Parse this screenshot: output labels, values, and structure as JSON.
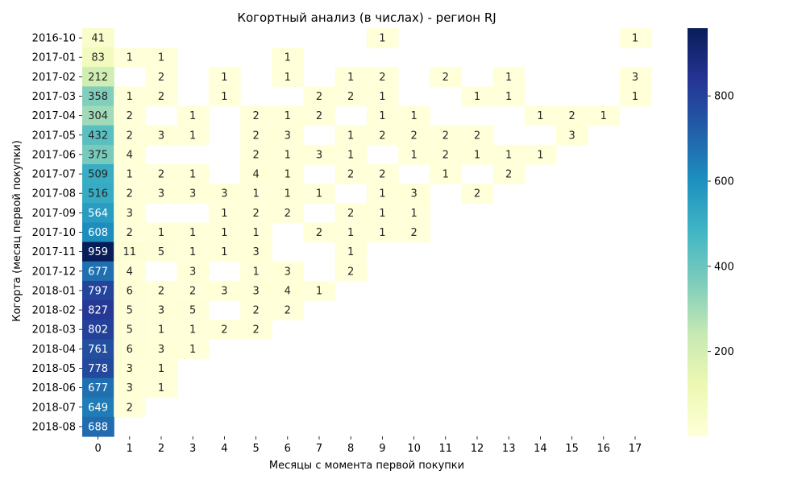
{
  "chart_data": {
    "type": "heatmap",
    "title": "Когортный анализ (в числах) - регион RJ",
    "xlabel": "Месяцы с момента первой покупки",
    "ylabel": "Когорта (месяц первой покупки)",
    "x_categories": [
      "0",
      "1",
      "2",
      "3",
      "4",
      "5",
      "6",
      "7",
      "8",
      "9",
      "10",
      "11",
      "12",
      "13",
      "14",
      "15",
      "16",
      "17"
    ],
    "y_categories": [
      "2016-10",
      "2017-01",
      "2017-02",
      "2017-03",
      "2017-04",
      "2017-05",
      "2017-06",
      "2017-07",
      "2017-08",
      "2017-09",
      "2017-10",
      "2017-11",
      "2017-12",
      "2018-01",
      "2018-02",
      "2018-03",
      "2018-04",
      "2018-05",
      "2018-06",
      "2018-07",
      "2018-08"
    ],
    "values": [
      [
        41,
        null,
        null,
        null,
        null,
        null,
        null,
        null,
        null,
        1,
        null,
        null,
        null,
        null,
        null,
        null,
        null,
        1
      ],
      [
        83,
        1,
        1,
        null,
        null,
        null,
        1,
        null,
        null,
        null,
        null,
        null,
        null,
        null,
        null,
        null,
        null,
        null
      ],
      [
        212,
        null,
        2,
        null,
        1,
        null,
        1,
        null,
        1,
        2,
        null,
        2,
        null,
        1,
        null,
        null,
        null,
        3
      ],
      [
        358,
        1,
        2,
        null,
        1,
        null,
        null,
        2,
        2,
        1,
        null,
        null,
        1,
        1,
        null,
        null,
        null,
        1
      ],
      [
        304,
        2,
        null,
        1,
        null,
        2,
        1,
        2,
        null,
        1,
        1,
        null,
        null,
        null,
        1,
        2,
        1,
        null
      ],
      [
        432,
        2,
        3,
        1,
        null,
        2,
        3,
        null,
        1,
        2,
        2,
        2,
        2,
        null,
        null,
        3,
        null,
        null
      ],
      [
        375,
        4,
        null,
        null,
        null,
        2,
        1,
        3,
        1,
        null,
        1,
        2,
        1,
        1,
        1,
        null,
        null,
        null
      ],
      [
        509,
        1,
        2,
        1,
        null,
        4,
        1,
        null,
        2,
        2,
        null,
        1,
        null,
        2,
        null,
        null,
        null,
        null
      ],
      [
        516,
        2,
        3,
        3,
        3,
        1,
        1,
        1,
        null,
        1,
        3,
        null,
        2,
        null,
        null,
        null,
        null,
        null
      ],
      [
        564,
        3,
        null,
        null,
        1,
        2,
        2,
        null,
        2,
        1,
        1,
        null,
        null,
        null,
        null,
        null,
        null,
        null
      ],
      [
        608,
        2,
        1,
        1,
        1,
        1,
        null,
        2,
        1,
        1,
        2,
        null,
        null,
        null,
        null,
        null,
        null,
        null
      ],
      [
        959,
        11,
        5,
        1,
        1,
        3,
        null,
        null,
        1,
        null,
        null,
        null,
        null,
        null,
        null,
        null,
        null,
        null
      ],
      [
        677,
        4,
        null,
        3,
        null,
        1,
        3,
        null,
        2,
        null,
        null,
        null,
        null,
        null,
        null,
        null,
        null,
        null
      ],
      [
        797,
        6,
        2,
        2,
        3,
        3,
        4,
        1,
        null,
        null,
        null,
        null,
        null,
        null,
        null,
        null,
        null,
        null
      ],
      [
        827,
        5,
        3,
        5,
        null,
        2,
        2,
        null,
        null,
        null,
        null,
        null,
        null,
        null,
        null,
        null,
        null,
        null
      ],
      [
        802,
        5,
        1,
        1,
        2,
        2,
        null,
        null,
        null,
        null,
        null,
        null,
        null,
        null,
        null,
        null,
        null,
        null
      ],
      [
        761,
        6,
        3,
        1,
        null,
        null,
        null,
        null,
        null,
        null,
        null,
        null,
        null,
        null,
        null,
        null,
        null,
        null
      ],
      [
        778,
        3,
        1,
        null,
        null,
        null,
        null,
        null,
        null,
        null,
        null,
        null,
        null,
        null,
        null,
        null,
        null,
        null
      ],
      [
        677,
        3,
        1,
        null,
        null,
        null,
        null,
        null,
        null,
        null,
        null,
        null,
        null,
        null,
        null,
        null,
        null,
        null
      ],
      [
        649,
        2,
        null,
        null,
        null,
        null,
        null,
        null,
        null,
        null,
        null,
        null,
        null,
        null,
        null,
        null,
        null,
        null
      ],
      [
        688,
        null,
        null,
        null,
        null,
        null,
        null,
        null,
        null,
        null,
        null,
        null,
        null,
        null,
        null,
        null,
        null,
        null
      ]
    ],
    "colormap": "YlGnBu",
    "vmin": 1,
    "vmax": 959,
    "colorbar_ticks": [
      200,
      400,
      600,
      800
    ],
    "annotations": true,
    "grid": false
  }
}
